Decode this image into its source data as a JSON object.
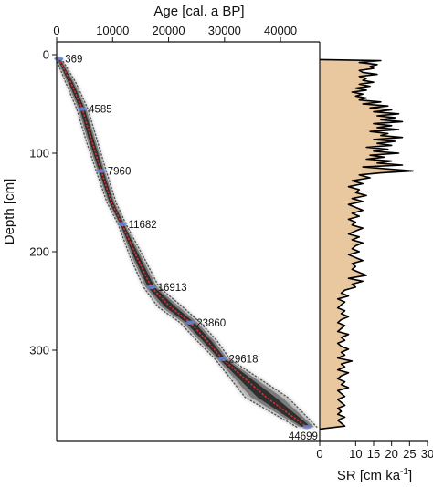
{
  "chart_data": [
    {
      "type": "scatter",
      "description_role": "age-depth model",
      "xlabel": "Age [cal. a BP]",
      "ylabel": "Depth [cm]",
      "xlim": [
        0,
        47000
      ],
      "ylim": [
        0,
        390
      ],
      "x_ticks": [
        "0",
        "10000",
        "20000",
        "30000",
        "40000"
      ],
      "x_tick_values": [
        0,
        10000,
        20000,
        30000,
        40000
      ],
      "y_ticks": [
        "0",
        "100",
        "200",
        "300"
      ],
      "y_tick_values": [
        0,
        100,
        200,
        300
      ],
      "x_axis_position": "top",
      "grid": false,
      "colors": {
        "envelope_outer": "#9a9a9a",
        "envelope_inner": "#2a2a2a",
        "envelope_dots": "#555555",
        "model_line": "#e03030",
        "dated_points": "#6a86d8"
      },
      "model_points": [
        [
          369,
          4
        ],
        [
          2500,
          28
        ],
        [
          4585,
          55
        ],
        [
          6300,
          88
        ],
        [
          7960,
          118
        ],
        [
          9800,
          150
        ],
        [
          11682,
          172
        ],
        [
          14300,
          205
        ],
        [
          16913,
          236
        ],
        [
          20300,
          256
        ],
        [
          23860,
          272
        ],
        [
          26800,
          290
        ],
        [
          29618,
          309
        ],
        [
          37500,
          348
        ],
        [
          44699,
          378
        ]
      ],
      "envelope_width_years": [
        500,
        900,
        1000,
        1000,
        900,
        800,
        700,
        1200,
        1400,
        2200,
        1800,
        1800,
        1300,
        3800,
        1800
      ],
      "dated_points": [
        {
          "age": 369,
          "depth": 4,
          "label": "369"
        },
        {
          "age": 4585,
          "depth": 55,
          "label": "4585"
        },
        {
          "age": 7960,
          "depth": 118,
          "label": "7960"
        },
        {
          "age": 11682,
          "depth": 172,
          "label": "11682"
        },
        {
          "age": 16913,
          "depth": 236,
          "label": "16913"
        },
        {
          "age": 23860,
          "depth": 272,
          "label": "23860"
        },
        {
          "age": 29618,
          "depth": 309,
          "label": "29618"
        },
        {
          "age": 44699,
          "depth": 378,
          "label": "44699"
        }
      ]
    },
    {
      "type": "area",
      "description_role": "sedimentation rate",
      "xlabel": "SR [cm ka",
      "xlabel_superscript": "-1",
      "xlabel_suffix": "]",
      "xlim": [
        0,
        30
      ],
      "ylim": [
        0,
        390
      ],
      "x_ticks": [
        "0",
        "10",
        "15",
        "20",
        "25",
        "30"
      ],
      "x_tick_values": [
        0,
        10,
        15,
        20,
        25,
        30
      ],
      "x_axis_position": "bottom",
      "grid": false,
      "fill_color": "#e9c8a0",
      "line_color": "#000000",
      "depth": [
        5,
        6,
        8,
        10,
        12,
        14,
        16,
        18,
        20,
        22,
        24,
        26,
        28,
        30,
        32,
        34,
        36,
        38,
        40,
        42,
        44,
        46,
        48,
        50,
        52,
        54,
        56,
        58,
        60,
        62,
        64,
        66,
        68,
        70,
        72,
        74,
        76,
        78,
        80,
        82,
        84,
        86,
        88,
        90,
        92,
        94,
        96,
        98,
        100,
        102,
        104,
        106,
        108,
        110,
        112,
        114,
        116,
        118,
        120,
        122,
        125,
        128,
        131,
        134,
        137,
        140,
        143,
        146,
        149,
        152,
        155,
        158,
        161,
        164,
        167,
        170,
        173,
        176,
        179,
        182,
        185,
        188,
        191,
        194,
        197,
        200,
        203,
        206,
        209,
        212,
        215,
        218,
        221,
        224,
        227,
        230,
        233,
        236,
        239,
        242,
        245,
        248,
        251,
        254,
        257,
        260,
        263,
        266,
        269,
        272,
        275,
        278,
        281,
        284,
        287,
        290,
        293,
        296,
        299,
        302,
        305,
        308,
        311,
        314,
        317,
        320,
        323,
        326,
        329,
        332,
        335,
        338,
        341,
        344,
        347,
        350,
        353,
        356,
        359,
        362,
        365,
        368,
        371,
        374,
        377,
        380
      ],
      "sr": [
        0,
        17,
        11,
        16,
        14,
        15,
        11,
        12,
        16,
        11,
        13,
        12,
        15,
        11,
        14,
        10,
        13,
        9,
        12,
        10,
        13,
        11,
        17,
        12,
        19,
        14,
        20,
        15,
        22,
        16,
        21,
        17,
        23,
        15,
        20,
        16,
        22,
        14,
        19,
        17,
        23,
        15,
        21,
        16,
        20,
        13,
        19,
        15,
        22,
        14,
        18,
        13,
        20,
        16,
        23,
        12,
        19,
        26,
        17,
        11,
        14,
        9,
        12,
        8,
        11,
        10,
        13,
        9,
        12,
        8,
        10,
        12,
        9,
        11,
        8,
        10,
        9,
        12,
        10,
        8,
        11,
        9,
        12,
        10,
        9,
        11,
        8,
        10,
        12,
        9,
        10,
        9,
        11,
        13,
        8,
        12,
        9,
        10,
        7,
        6,
        8,
        5,
        7,
        6,
        5,
        7,
        6,
        8,
        6,
        5,
        7,
        6,
        5,
        8,
        6,
        7,
        5,
        6,
        8,
        6,
        7,
        5,
        9,
        6,
        7,
        5,
        8,
        6,
        5,
        7,
        6,
        8,
        5,
        6,
        7,
        5,
        6,
        7,
        5,
        6,
        5,
        7,
        5,
        6,
        7,
        0
      ]
    }
  ]
}
